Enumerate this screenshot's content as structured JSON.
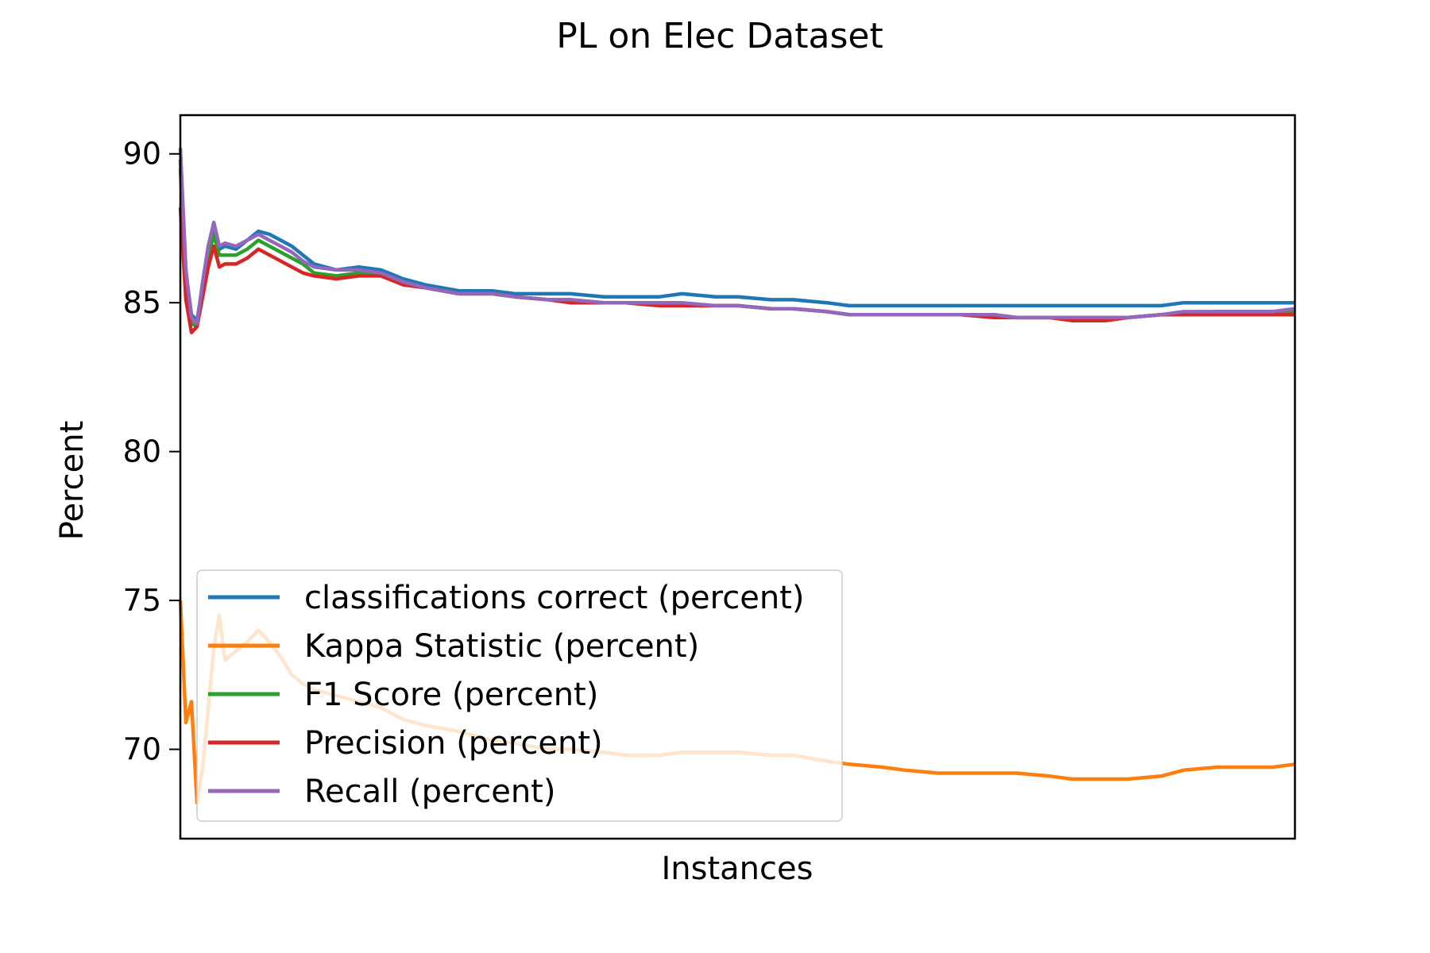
{
  "chart_data": {
    "type": "line",
    "title": "PL on Elec Dataset",
    "xlabel": "Instances",
    "ylabel": "Percent",
    "ylim": [
      67.0,
      91.3
    ],
    "xlim": [
      0,
      100
    ],
    "y_ticks": [
      70,
      75,
      80,
      85,
      90
    ],
    "x_ticks_shown": false,
    "grid": false,
    "legend_position": "lower-left",
    "x": [
      0,
      0.5,
      1,
      1.5,
      2,
      2.5,
      3,
      3.5,
      4,
      5,
      6,
      7,
      8,
      9,
      10,
      11,
      12,
      14,
      16,
      18,
      20,
      22,
      25,
      28,
      30,
      33,
      35,
      38,
      40,
      43,
      45,
      48,
      50,
      53,
      55,
      58,
      60,
      63,
      65,
      68,
      70,
      73,
      75,
      78,
      80,
      83,
      85,
      88,
      90,
      93,
      95,
      98,
      100
    ],
    "series": [
      {
        "name": "classifications correct (percent)",
        "color": "#1f77b4",
        "values": [
          89.8,
          86.0,
          84.6,
          84.4,
          85.6,
          86.6,
          87.4,
          86.8,
          86.9,
          86.8,
          87.1,
          87.4,
          87.3,
          87.1,
          86.9,
          86.6,
          86.3,
          86.1,
          86.2,
          86.1,
          85.8,
          85.6,
          85.4,
          85.4,
          85.3,
          85.3,
          85.3,
          85.2,
          85.2,
          85.2,
          85.3,
          85.2,
          85.2,
          85.1,
          85.1,
          85.0,
          84.9,
          84.9,
          84.9,
          84.9,
          84.9,
          84.9,
          84.9,
          84.9,
          84.9,
          84.9,
          84.9,
          84.9,
          85.0,
          85.0,
          85.0,
          85.0,
          85.0
        ]
      },
      {
        "name": "Kappa Statistic (percent)",
        "color": "#ff7f0e",
        "values": [
          75.0,
          70.9,
          71.6,
          68.2,
          69.4,
          71.4,
          73.4,
          74.5,
          73.0,
          73.3,
          73.6,
          74.0,
          73.6,
          73.1,
          72.5,
          72.2,
          72.0,
          71.8,
          71.6,
          71.4,
          71.0,
          70.8,
          70.6,
          70.3,
          70.2,
          70.0,
          70.0,
          69.9,
          69.8,
          69.8,
          69.9,
          69.9,
          69.9,
          69.8,
          69.8,
          69.6,
          69.5,
          69.4,
          69.3,
          69.2,
          69.2,
          69.2,
          69.2,
          69.1,
          69.0,
          69.0,
          69.0,
          69.1,
          69.3,
          69.4,
          69.4,
          69.4,
          69.5
        ]
      },
      {
        "name": "F1 Score (percent)",
        "color": "#2ca02c",
        "values": [
          89.5,
          85.6,
          84.3,
          84.2,
          85.4,
          86.5,
          87.3,
          86.6,
          86.6,
          86.6,
          86.8,
          87.1,
          86.9,
          86.7,
          86.5,
          86.3,
          86.0,
          85.9,
          86.0,
          86.0,
          85.7,
          85.5,
          85.3,
          85.3,
          85.2,
          85.1,
          85.1,
          85.0,
          85.0,
          84.9,
          84.9,
          84.9,
          84.9,
          84.8,
          84.8,
          84.7,
          84.6,
          84.6,
          84.6,
          84.6,
          84.6,
          84.6,
          84.5,
          84.5,
          84.5,
          84.5,
          84.5,
          84.6,
          84.6,
          84.7,
          84.7,
          84.7,
          84.7
        ]
      },
      {
        "name": "Precision (percent)",
        "color": "#d62728",
        "values": [
          88.2,
          85.1,
          84.0,
          84.2,
          85.2,
          86.2,
          86.9,
          86.2,
          86.3,
          86.3,
          86.5,
          86.8,
          86.6,
          86.4,
          86.2,
          86.0,
          85.9,
          85.8,
          85.9,
          85.9,
          85.6,
          85.5,
          85.3,
          85.3,
          85.2,
          85.1,
          85.0,
          85.0,
          85.0,
          84.9,
          84.9,
          84.9,
          84.9,
          84.8,
          84.8,
          84.7,
          84.6,
          84.6,
          84.6,
          84.6,
          84.6,
          84.5,
          84.5,
          84.5,
          84.4,
          84.4,
          84.5,
          84.6,
          84.6,
          84.6,
          84.6,
          84.6,
          84.6
        ]
      },
      {
        "name": "Recall (percent)",
        "color": "#9467bd",
        "values": [
          90.2,
          86.1,
          84.5,
          84.3,
          85.7,
          86.9,
          87.7,
          86.9,
          87.0,
          86.9,
          87.1,
          87.3,
          87.1,
          86.9,
          86.7,
          86.4,
          86.2,
          86.1,
          86.1,
          86.0,
          85.7,
          85.5,
          85.3,
          85.3,
          85.2,
          85.1,
          85.1,
          85.0,
          85.0,
          85.0,
          85.0,
          84.9,
          84.9,
          84.8,
          84.8,
          84.7,
          84.6,
          84.6,
          84.6,
          84.6,
          84.6,
          84.6,
          84.5,
          84.5,
          84.5,
          84.5,
          84.5,
          84.6,
          84.7,
          84.7,
          84.7,
          84.7,
          84.8
        ]
      }
    ]
  }
}
